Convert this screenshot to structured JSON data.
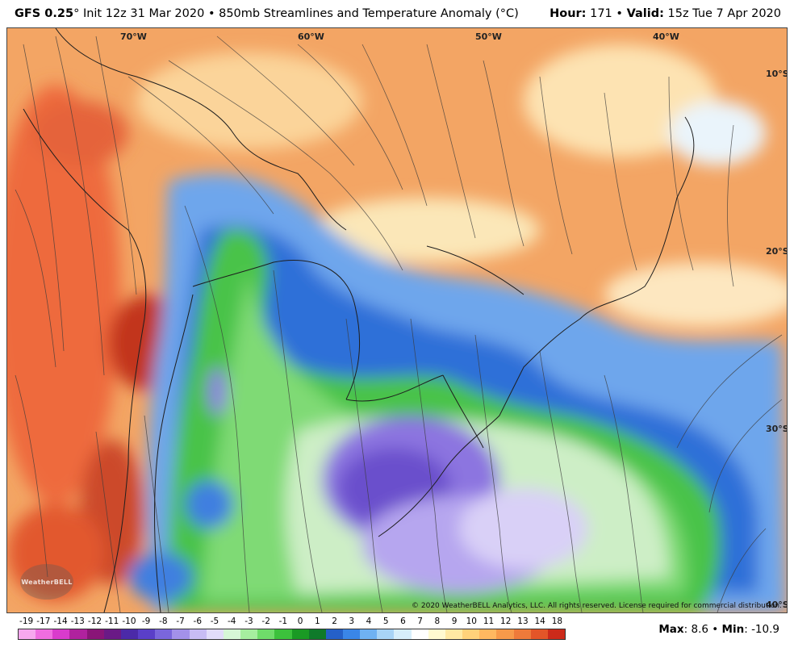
{
  "header": {
    "model": "GFS 0.25",
    "deg_mark": "°",
    "init": "Init 12z 31 Mar 2020",
    "sep": "•",
    "product": "850mb Streamlines and Temperature Anomaly (°C)",
    "hour_label": "Hour:",
    "hour_value": "171",
    "valid_label": "Valid:",
    "valid_value": "15z Tue 7 Apr 2020"
  },
  "map": {
    "lon_labels": [
      "70°W",
      "60°W",
      "50°W",
      "40°W"
    ],
    "lat_labels": [
      "10°S",
      "20°S",
      "30°S",
      "40°S"
    ],
    "copyright": "© 2020 WeatherBELL Analytics, LLC. All rights reserved. License required for commercial distribution.",
    "logo_text": "WeatherBELL",
    "projection_background": "#f2a060"
  },
  "colorbar": {
    "ticks": [
      "-19",
      "-17",
      "-14",
      "-13",
      "-12",
      "-11",
      "-10",
      "-9",
      "-8",
      "-7",
      "-6",
      "-5",
      "-4",
      "-3",
      "-2",
      "-1",
      "0",
      "1",
      "2",
      "3",
      "4",
      "5",
      "6",
      "7",
      "8",
      "9",
      "10",
      "11",
      "12",
      "13",
      "14",
      "18"
    ],
    "colors": [
      "#f7a8ee",
      "#ef6de0",
      "#d93bcc",
      "#b0229e",
      "#8a1578",
      "#6a1a86",
      "#4b2aa8",
      "#5a3fc8",
      "#7a66dc",
      "#a391ea",
      "#c8bcf4",
      "#e2dcfa",
      "#d6f7d6",
      "#a6ee9f",
      "#6fdc6a",
      "#3cc13c",
      "#1a9a24",
      "#0f7a2a",
      "#2560c8",
      "#3a86e8",
      "#6fb2f2",
      "#a8d4f6",
      "#d6eefb",
      "#ffffff",
      "#fffad0",
      "#ffe9a3",
      "#ffd27a",
      "#ffb860",
      "#f79a4a",
      "#ee7a3a",
      "#e35528",
      "#cc2a1a"
    ]
  },
  "stats": {
    "max_label": "Max",
    "max_value": "8.6",
    "min_label": "Min",
    "min_value": "-10.9",
    "sep": "•"
  }
}
